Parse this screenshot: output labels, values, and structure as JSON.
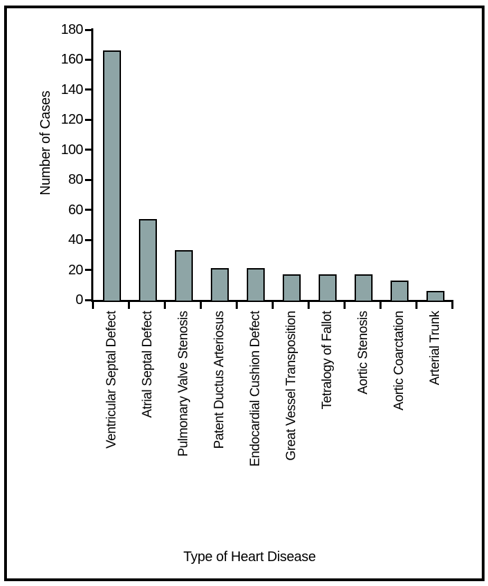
{
  "figure": {
    "background": "#ffffff",
    "border_color": "#000000"
  },
  "chart_data": {
    "type": "bar",
    "title": "",
    "xlabel": "Type of Heart Disease",
    "ylabel": "Number of Cases",
    "categories": [
      "Ventricular Septal Defect",
      "Atrial Septal Defect",
      "Pulmonary Valve Stenosis",
      "Patent Ductus Arteriosus",
      "Endocardial Cushion Defect",
      "Great Vessel Transposition",
      "Tetralogy of Fallot",
      "Aortic Stenosis",
      "Aortic Coarctation",
      "Arterial Trunk"
    ],
    "values": [
      166,
      54,
      33,
      21,
      21,
      17,
      17,
      17,
      13,
      6
    ],
    "ylim": [
      0,
      180
    ],
    "yticks": [
      0,
      20,
      40,
      60,
      80,
      100,
      120,
      140,
      160,
      180
    ],
    "grid": false,
    "legend": false,
    "bar_color": "#8EA5A6",
    "bar_border_color": "#000000",
    "axis_color": "#000000",
    "label_color": "#000000"
  }
}
